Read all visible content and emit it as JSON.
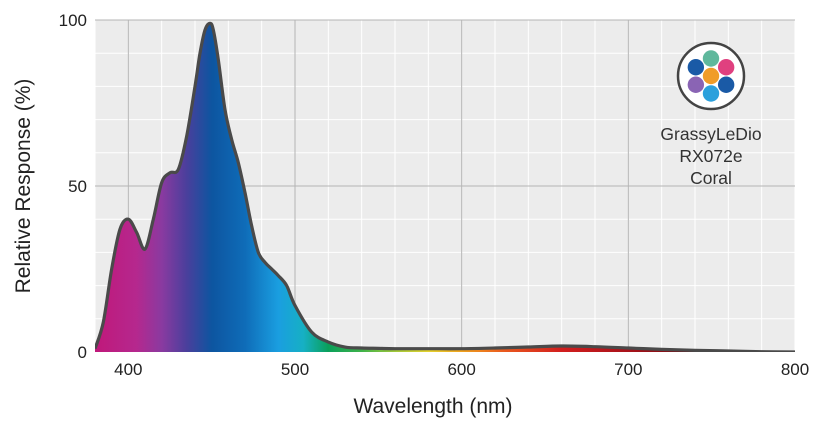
{
  "chart_data": {
    "type": "area",
    "title": "",
    "xlabel": "Wavelength (nm)",
    "ylabel": "Relative Response (%)",
    "xlim": [
      380,
      800
    ],
    "ylim": [
      0,
      100
    ],
    "x_ticks": [
      400,
      500,
      600,
      700,
      800
    ],
    "y_ticks": [
      0,
      50,
      100
    ],
    "grid": true,
    "series": [
      {
        "name": "GrassyLeDio RX072e Coral",
        "x": [
          380,
          385,
          390,
          395,
          400,
          405,
          410,
          415,
          420,
          425,
          430,
          435,
          440,
          443,
          446,
          449,
          451,
          454,
          458,
          462,
          466,
          470,
          474,
          478,
          482,
          486,
          490,
          495,
          500,
          510,
          520,
          530,
          540,
          550,
          560,
          580,
          600,
          620,
          640,
          660,
          680,
          700,
          720,
          740,
          760,
          780,
          800
        ],
        "values": [
          1,
          9,
          25,
          37,
          40,
          36,
          31,
          40,
          51,
          54,
          55,
          65,
          80,
          90,
          97,
          99,
          97,
          88,
          73,
          64,
          57,
          48,
          38,
          30,
          27,
          25,
          23,
          20,
          14,
          6,
          3,
          1.5,
          1.2,
          1.1,
          1.0,
          1.0,
          1.0,
          1.2,
          1.5,
          1.8,
          1.6,
          1.2,
          0.8,
          0.5,
          0.3,
          0.1,
          0
        ]
      }
    ],
    "spectrum_colors": [
      {
        "nm": 380,
        "color": "#c0187a"
      },
      {
        "nm": 405,
        "color": "#b5288e"
      },
      {
        "nm": 420,
        "color": "#8a3aa0"
      },
      {
        "nm": 435,
        "color": "#4a3f9c"
      },
      {
        "nm": 450,
        "color": "#0d55a0"
      },
      {
        "nm": 470,
        "color": "#0f6cb8"
      },
      {
        "nm": 490,
        "color": "#1a9ee0"
      },
      {
        "nm": 505,
        "color": "#16b0c4"
      },
      {
        "nm": 520,
        "color": "#0aa05a"
      },
      {
        "nm": 540,
        "color": "#3fb24a"
      },
      {
        "nm": 560,
        "color": "#a0c83a"
      },
      {
        "nm": 580,
        "color": "#e4d22e"
      },
      {
        "nm": 600,
        "color": "#f0a21e"
      },
      {
        "nm": 625,
        "color": "#ea5a1e"
      },
      {
        "nm": 660,
        "color": "#d21e1e"
      },
      {
        "nm": 700,
        "color": "#a8121a"
      },
      {
        "nm": 740,
        "color": "#6e0c12"
      },
      {
        "nm": 800,
        "color": "#3a0608"
      }
    ],
    "curve_color": "#4a4a4a",
    "plot_background": "#ececec",
    "grid_color": "#ffffff",
    "major_grid_color": "#b4b4b4"
  },
  "legend": {
    "lines": [
      "GrassyLeDio",
      "RX072e",
      "Coral"
    ],
    "logo_dots": [
      {
        "name": "teal",
        "color": "#5fb89c"
      },
      {
        "name": "pink",
        "color": "#e0407f"
      },
      {
        "name": "blue-right",
        "color": "#1a5aa6"
      },
      {
        "name": "light-blue",
        "color": "#2ba0dc"
      },
      {
        "name": "purple",
        "color": "#8a64b4"
      },
      {
        "name": "blue-left",
        "color": "#1a5aa6"
      },
      {
        "name": "orange-center",
        "color": "#f09c28"
      }
    ]
  }
}
